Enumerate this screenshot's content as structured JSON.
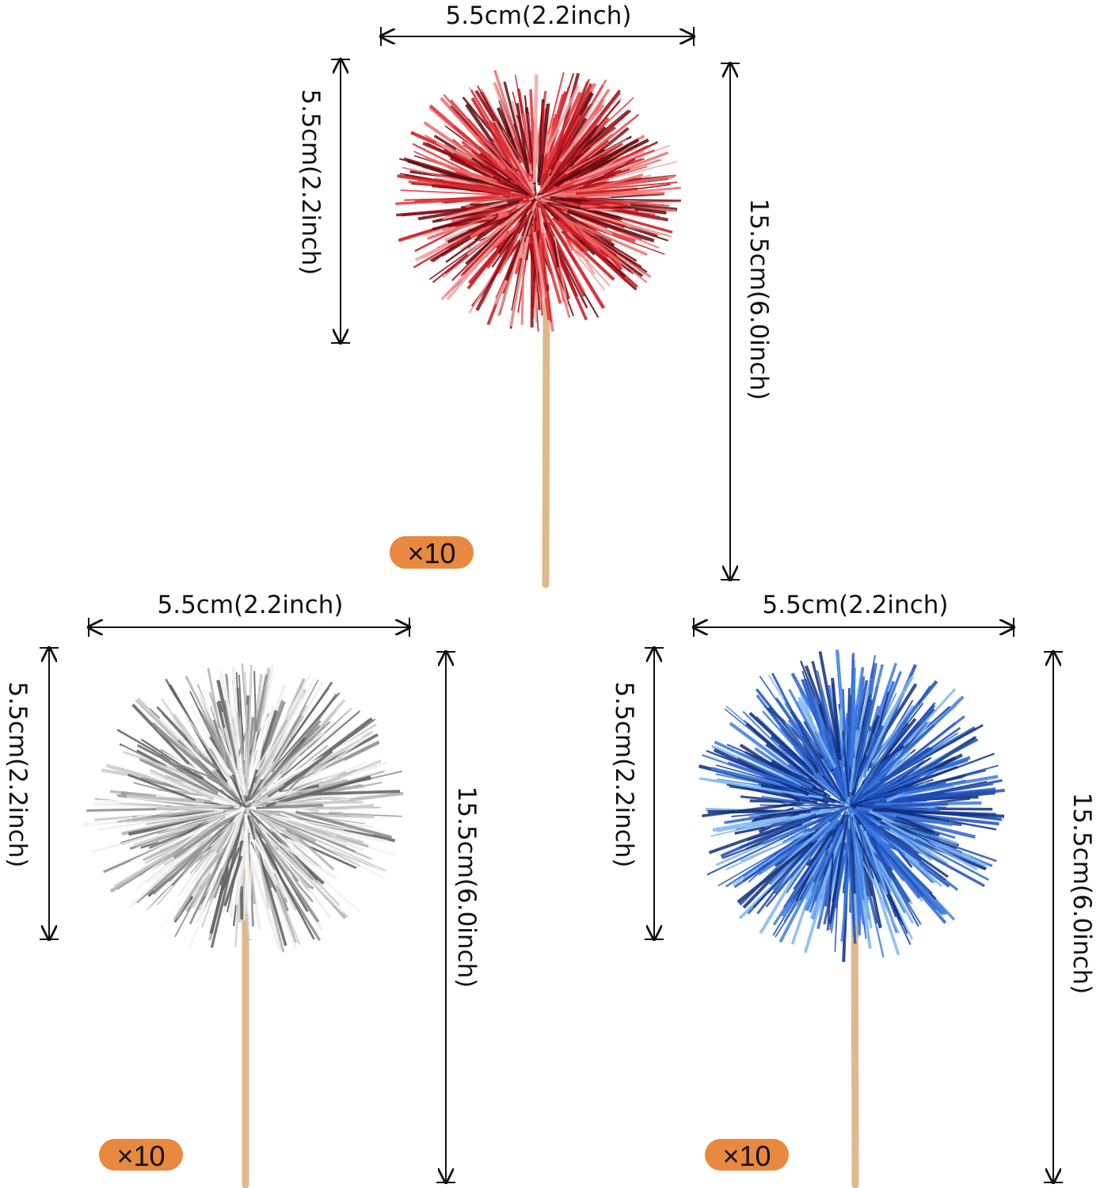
{
  "colors": {
    "badge": "#E8893F",
    "stick": "#DDB98C",
    "line": "#111111"
  },
  "products": [
    {
      "name": "red",
      "colors": [
        "#C8161D",
        "#E0313A",
        "#8E0A12",
        "#F06A6A",
        "#5A0A10",
        "#F4A0A0"
      ],
      "width_label": "5.5cm(2.2inch)",
      "height_label": "5.5cm(2.2inch)",
      "total_label": "15.5cm(6.0inch)",
      "quantity": "×10"
    },
    {
      "name": "silver",
      "colors": [
        "#C9C9C9",
        "#EDEDED",
        "#8A8A8A",
        "#B0B0B0",
        "#5E5E5E",
        "#FFFFFF"
      ],
      "width_label": "5.5cm(2.2inch)",
      "height_label": "5.5cm(2.2inch)",
      "total_label": "15.5cm(6.0inch)",
      "quantity": "×10"
    },
    {
      "name": "blue",
      "colors": [
        "#1E4FB8",
        "#2A64D6",
        "#0E2E82",
        "#7FB6F0",
        "#14307A",
        "#3D7BE0"
      ],
      "width_label": "5.5cm(2.2inch)",
      "height_label": "5.5cm(2.2inch)",
      "total_label": "15.5cm(6.0inch)",
      "quantity": "×10"
    }
  ]
}
